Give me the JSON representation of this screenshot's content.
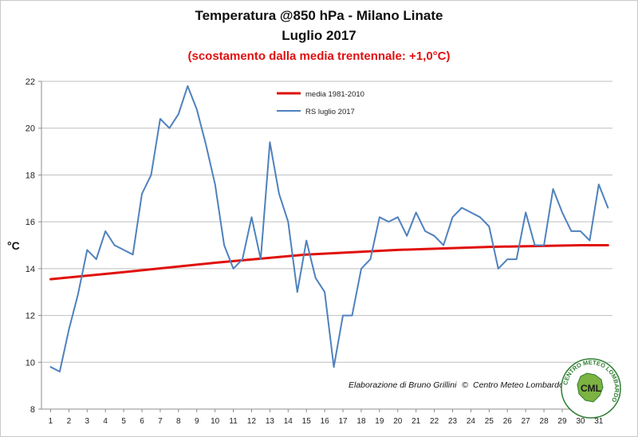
{
  "chart_data": {
    "type": "line",
    "title": "Temperatura @850 hPa - Milano Linate",
    "subtitle": "Luglio 2017",
    "subtitle2": "(scostamento dalla media trentennale: +1,0°C)",
    "ylabel": "°C",
    "xlabel": "",
    "ylim": [
      8,
      22
    ],
    "yticks": [
      8,
      10,
      12,
      14,
      16,
      18,
      20,
      22
    ],
    "xticks": [
      1,
      2,
      3,
      4,
      5,
      6,
      7,
      8,
      9,
      10,
      11,
      12,
      13,
      14,
      15,
      16,
      17,
      18,
      19,
      20,
      21,
      22,
      23,
      24,
      25,
      26,
      27,
      28,
      29,
      30,
      31
    ],
    "grid": "horizontal",
    "legend_position": "top-center",
    "series": [
      {
        "name": "media 1981-2010",
        "color": "#e0100a",
        "x": [
          1,
          5,
          10,
          15,
          20,
          25,
          30,
          31.5
        ],
        "values": [
          13.55,
          13.85,
          14.25,
          14.6,
          14.8,
          14.93,
          15.0,
          15.0
        ]
      },
      {
        "name": "RS luglio 2017",
        "color": "#4f81bd",
        "x": [
          1,
          1.5,
          2,
          2.5,
          3,
          3.5,
          4,
          4.5,
          5,
          5.5,
          6,
          6.5,
          7,
          7.5,
          8,
          8.5,
          9,
          9.5,
          10,
          10.5,
          11,
          11.5,
          12,
          12.5,
          13,
          13.5,
          14,
          14.5,
          15,
          15.5,
          16,
          16.5,
          17,
          17.5,
          18,
          18.5,
          19,
          19.5,
          20,
          20.5,
          21,
          21.5,
          22,
          22.5,
          23,
          23.5,
          24,
          24.5,
          25,
          25.5,
          26,
          26.5,
          27,
          27.5,
          28,
          28.5,
          29,
          29.5,
          30,
          30.5,
          31,
          31.5
        ],
        "values": [
          9.8,
          9.6,
          11.4,
          12.9,
          14.8,
          14.4,
          15.6,
          15.0,
          14.8,
          14.6,
          17.2,
          18.0,
          20.4,
          20.0,
          20.6,
          21.8,
          20.8,
          19.3,
          17.6,
          15.0,
          14.0,
          14.4,
          16.2,
          14.4,
          19.4,
          17.2,
          16.0,
          13.0,
          15.2,
          13.6,
          13.0,
          9.8,
          12.0,
          12.0,
          14.0,
          14.4,
          16.2,
          16.0,
          16.2,
          15.4,
          16.4,
          15.6,
          15.4,
          15.0,
          16.2,
          16.6,
          16.4,
          16.2,
          15.8,
          14.0,
          14.4,
          14.4,
          16.4,
          15.0,
          15.0,
          17.4,
          16.4,
          15.6,
          15.6,
          15.2,
          17.6,
          16.6
        ]
      }
    ]
  },
  "credit": {
    "text": "Elaborazione di Bruno Grillini",
    "copyright_symbol": "©",
    "org": "Centro Meteo Lombardo"
  },
  "logo": {
    "initials": "CML",
    "ring_text": "CENTRO METEO LOMBARDO",
    "color": "#2e7d32"
  }
}
